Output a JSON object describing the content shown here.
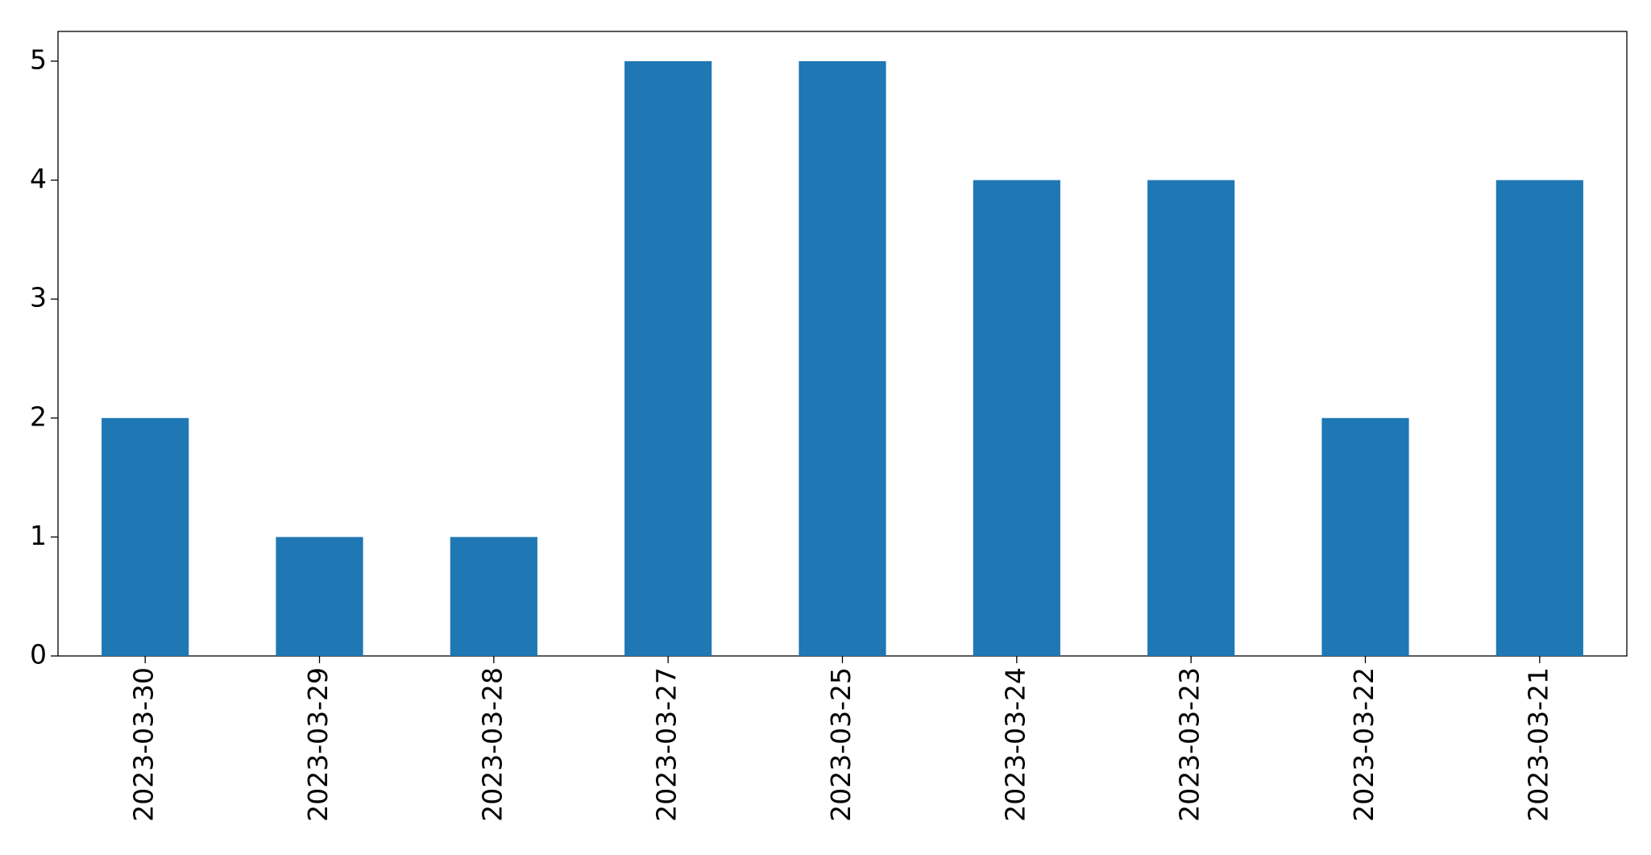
{
  "chart_data": {
    "type": "bar",
    "categories": [
      "2023-03-30",
      "2023-03-29",
      "2023-03-28",
      "2023-03-27",
      "2023-03-25",
      "2023-03-24",
      "2023-03-23",
      "2023-03-22",
      "2023-03-21"
    ],
    "values": [
      2,
      1,
      1,
      5,
      5,
      4,
      4,
      2,
      4
    ],
    "color": "#1f77b4",
    "ylim": [
      0,
      5.25
    ],
    "yticks": [
      0,
      1,
      2,
      3,
      4,
      5
    ],
    "grid": false
  }
}
